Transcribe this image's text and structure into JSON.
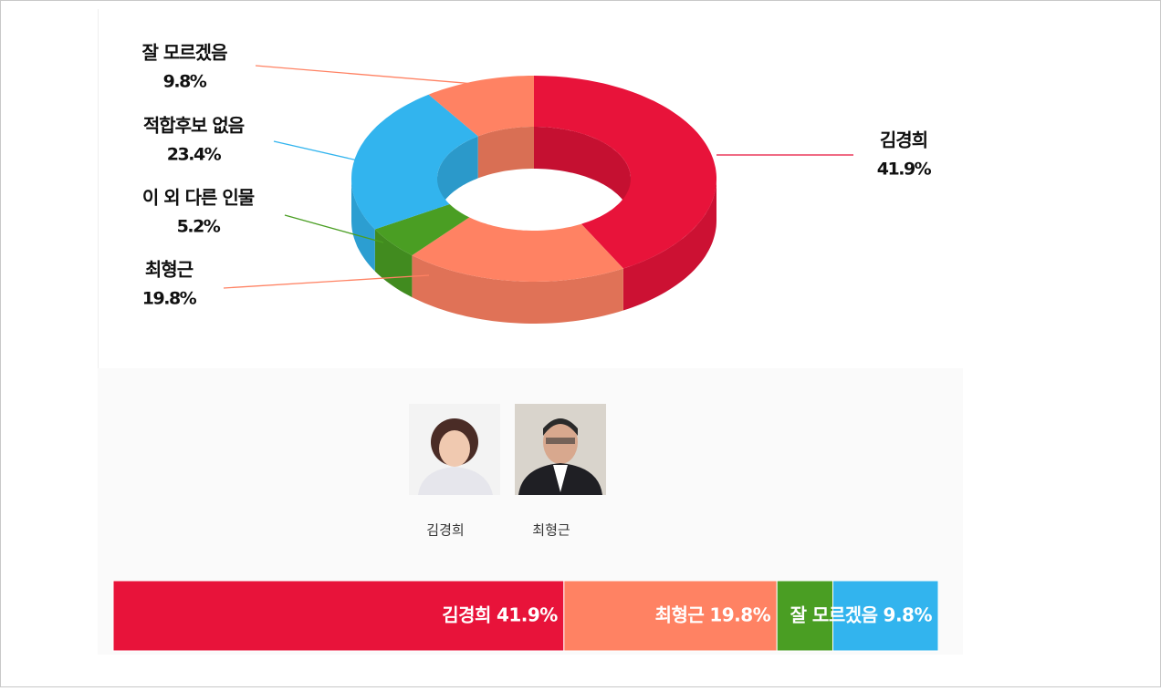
{
  "chart_data": [
    {
      "type": "donut",
      "categories": [
        "김경희",
        "최형근",
        "이 외 다른 인물",
        "적합후보 없음",
        "잘 모르겠음"
      ],
      "values": [
        41.9,
        19.8,
        5.2,
        23.4,
        9.8
      ],
      "value_labels": [
        "41.9%",
        "19.8%",
        "5.2%",
        "23.4%",
        "9.8%"
      ],
      "colors": [
        "#e8133a",
        "#ff8263",
        "#4a9e23",
        "#32b4ee",
        "#ff8263"
      ]
    },
    {
      "type": "stacked_bar",
      "categories": [
        "김경희",
        "최형근",
        null,
        "잘 모르겠음"
      ],
      "values": [
        41.9,
        19.8,
        5.2,
        9.8
      ],
      "value_labels": [
        "41.9%",
        "19.8%",
        null,
        "9.8%"
      ],
      "colors": [
        "#e8133a",
        "#ff8263",
        "#4a9e23",
        "#32b4ee"
      ]
    }
  ],
  "candidates": [
    {
      "name": "김경희"
    },
    {
      "name": "최형근"
    }
  ]
}
